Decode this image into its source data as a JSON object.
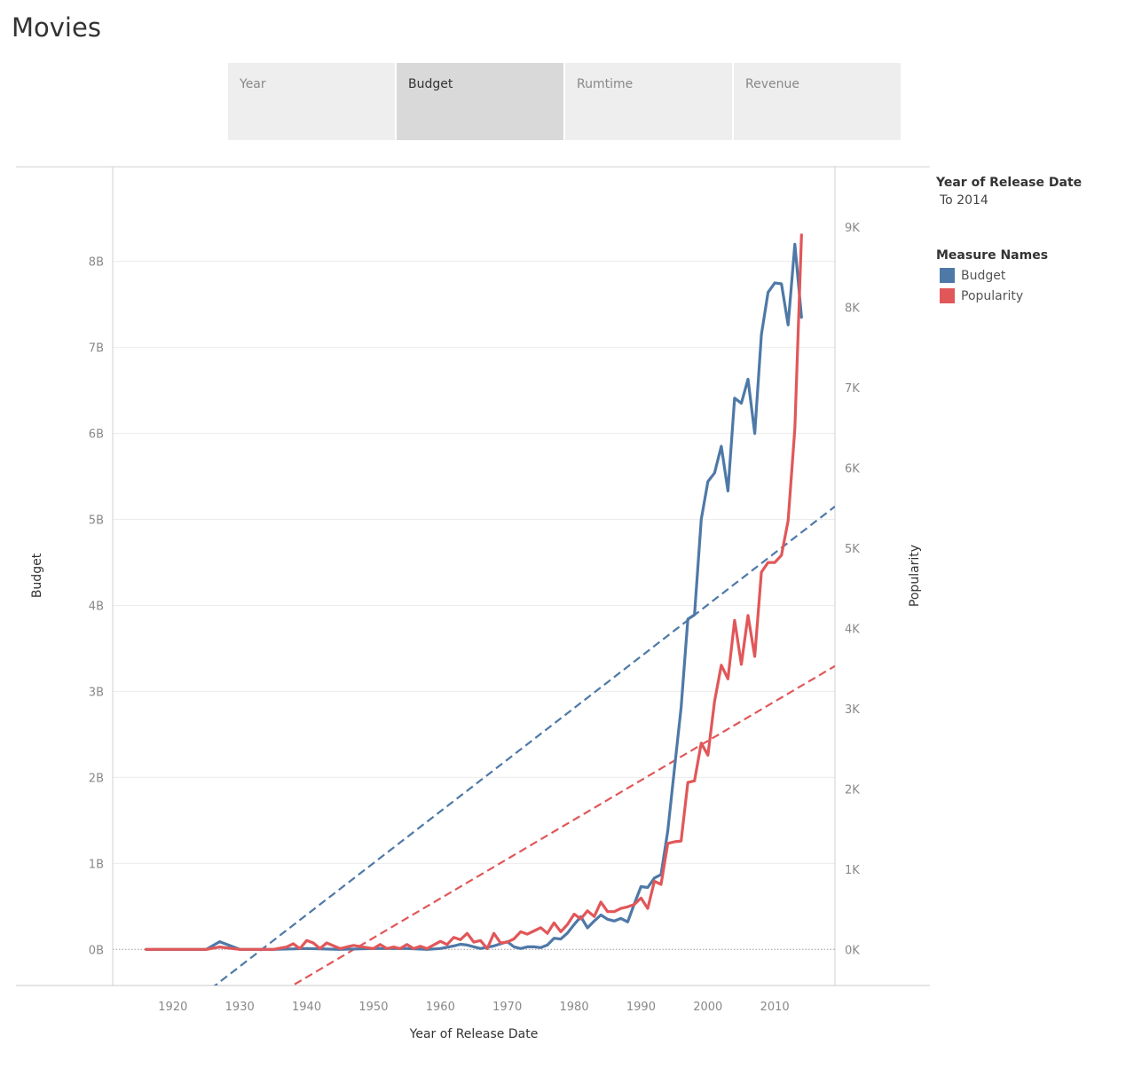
{
  "title": "Movies",
  "tabs": [
    {
      "label": "Year",
      "active": false
    },
    {
      "label": "Budget",
      "active": true
    },
    {
      "label": "Rumtime",
      "active": false
    },
    {
      "label": "Revenue",
      "active": false
    }
  ],
  "legend": {
    "filter_title": "Year of Release Date",
    "filter_value": "To 2014",
    "measure_title": "Measure Names",
    "items": [
      {
        "label": "Budget",
        "color": "#4e79a7"
      },
      {
        "label": "Popularity",
        "color": "#e15759"
      }
    ]
  },
  "chart_data": {
    "type": "line",
    "xlabel": "Year of Release Date",
    "ylabel": "Budget",
    "y2label": "Popularity",
    "xlim": [
      1911,
      2019
    ],
    "ylim": [
      -0.42,
      9.1
    ],
    "y2lim": [
      -450,
      9750
    ],
    "x_ticks": [
      1920,
      1930,
      1940,
      1950,
      1960,
      1970,
      1980,
      1990,
      2000,
      2010
    ],
    "y_ticks": [
      0,
      1,
      2,
      3,
      4,
      5,
      6,
      7,
      8
    ],
    "y_tick_labels": [
      "0B",
      "1B",
      "2B",
      "3B",
      "4B",
      "5B",
      "6B",
      "7B",
      "8B"
    ],
    "y2_ticks": [
      0,
      1000,
      2000,
      3000,
      4000,
      5000,
      6000,
      7000,
      8000,
      9000
    ],
    "y2_tick_labels": [
      "0K",
      "1K",
      "2K",
      "3K",
      "4K",
      "5K",
      "6K",
      "7K",
      "8K",
      "9K"
    ],
    "series": [
      {
        "name": "Budget",
        "axis": "left",
        "unit": "B",
        "color": "#4e79a7",
        "x": [
          1916,
          1920,
          1925,
          1927,
          1930,
          1935,
          1940,
          1945,
          1950,
          1955,
          1958,
          1960,
          1962,
          1963,
          1964,
          1966,
          1968,
          1970,
          1971,
          1972,
          1973,
          1974,
          1975,
          1976,
          1977,
          1978,
          1979,
          1980,
          1981,
          1982,
          1983,
          1984,
          1985,
          1986,
          1987,
          1988,
          1989,
          1990,
          1991,
          1992,
          1993,
          1994,
          1995,
          1996,
          1997,
          1998,
          1999,
          2000,
          2001,
          2002,
          2003,
          2004,
          2005,
          2006,
          2007,
          2008,
          2009,
          2010,
          2011,
          2012,
          2013,
          2014
        ],
        "values": [
          0,
          0,
          0,
          0.09,
          0,
          0,
          0.01,
          0,
          0.01,
          0.01,
          0,
          0.01,
          0.04,
          0.06,
          0.05,
          0.01,
          0.04,
          0.09,
          0.03,
          0.01,
          0.03,
          0.03,
          0.02,
          0.05,
          0.13,
          0.12,
          0.19,
          0.29,
          0.38,
          0.25,
          0.33,
          0.4,
          0.35,
          0.33,
          0.36,
          0.32,
          0.53,
          0.73,
          0.72,
          0.83,
          0.87,
          1.38,
          2.1,
          2.81,
          3.84,
          3.89,
          5.0,
          5.44,
          5.54,
          5.85,
          5.33,
          6.41,
          6.35,
          6.63,
          6.0,
          7.15,
          7.64,
          7.75,
          7.74,
          7.26,
          8.2,
          7.35
        ]
      },
      {
        "name": "Popularity",
        "axis": "right",
        "unit": "",
        "color": "#e15759",
        "x": [
          1916,
          1920,
          1925,
          1927,
          1930,
          1935,
          1937,
          1938,
          1939,
          1940,
          1941,
          1942,
          1943,
          1945,
          1946,
          1947,
          1950,
          1951,
          1952,
          1953,
          1954,
          1955,
          1956,
          1957,
          1958,
          1960,
          1961,
          1962,
          1963,
          1964,
          1965,
          1966,
          1967,
          1968,
          1969,
          1970,
          1971,
          1972,
          1973,
          1974,
          1975,
          1976,
          1977,
          1978,
          1979,
          1980,
          1981,
          1982,
          1983,
          1984,
          1985,
          1986,
          1987,
          1988,
          1989,
          1990,
          1991,
          1992,
          1993,
          1994,
          1995,
          1996,
          1997,
          1998,
          1999,
          2000,
          2001,
          2002,
          2003,
          2004,
          2005,
          2006,
          2007,
          2008,
          2009,
          2010,
          2011,
          2012,
          2013,
          2014
        ],
        "values": [
          0,
          0,
          0,
          30,
          0,
          0,
          30,
          70,
          10,
          110,
          80,
          10,
          80,
          10,
          30,
          50,
          10,
          60,
          10,
          30,
          10,
          60,
          10,
          40,
          10,
          100,
          60,
          150,
          120,
          200,
          90,
          110,
          10,
          200,
          80,
          90,
          130,
          220,
          190,
          230,
          270,
          200,
          330,
          220,
          310,
          440,
          380,
          480,
          410,
          590,
          470,
          470,
          510,
          530,
          560,
          640,
          510,
          850,
          810,
          1320,
          1340,
          1350,
          2080,
          2100,
          2570,
          2420,
          3090,
          3540,
          3370,
          4100,
          3550,
          4160,
          3650,
          4700,
          4820,
          4820,
          4910,
          5340,
          6490,
          8900
        ]
      }
    ],
    "trend_lines": [
      {
        "name": "Budget",
        "axis": "left",
        "color": "#4e79a7",
        "x": [
          1911,
          2019
        ],
        "y": [
          -1.34,
          5.15
        ]
      },
      {
        "name": "Popularity",
        "axis": "right",
        "color": "#e15759",
        "x": [
          1911,
          2019
        ],
        "y": [
          -1770,
          3530
        ]
      }
    ]
  }
}
